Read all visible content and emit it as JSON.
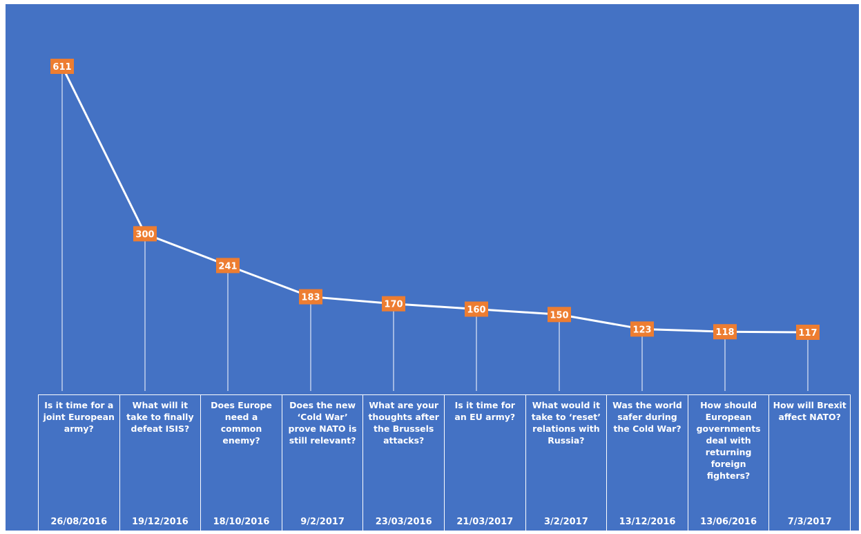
{
  "chart_data": {
    "type": "line",
    "series": [
      {
        "values": [
          611,
          300,
          241,
          183,
          170,
          160,
          150,
          123,
          118,
          117
        ]
      }
    ],
    "categories": [
      {
        "question": "Is it time for a joint European army?",
        "date": "26/08/2016"
      },
      {
        "question": "What will it take to finally defeat ISIS?",
        "date": "19/12/2016"
      },
      {
        "question": "Does Europe need a common enemy?",
        "date": "18/10/2016"
      },
      {
        "question": "Does the new ‘Cold War’ prove NATO is still relevant?",
        "date": "9/2/2017"
      },
      {
        "question": "What are your thoughts after the Brussels attacks?",
        "date": "23/03/2016"
      },
      {
        "question": "Is it time for an EU army?",
        "date": "21/03/2017"
      },
      {
        "question": "What would it take to ‘reset’ relations with Russia?",
        "date": "3/2/2017"
      },
      {
        "question": "Was the world safer during the Cold War?",
        "date": "13/12/2016"
      },
      {
        "question": "How should European governments deal with returning foreign fighters?",
        "date": "13/06/2016"
      },
      {
        "question": "How will Brexit affect NATO?",
        "date": "7/3/2017"
      }
    ],
    "colors": {
      "background": "#4472C4",
      "line": "#ffffff",
      "label_box": "#ED7D31",
      "text": "#ffffff"
    },
    "grid": false,
    "legend": "none"
  }
}
